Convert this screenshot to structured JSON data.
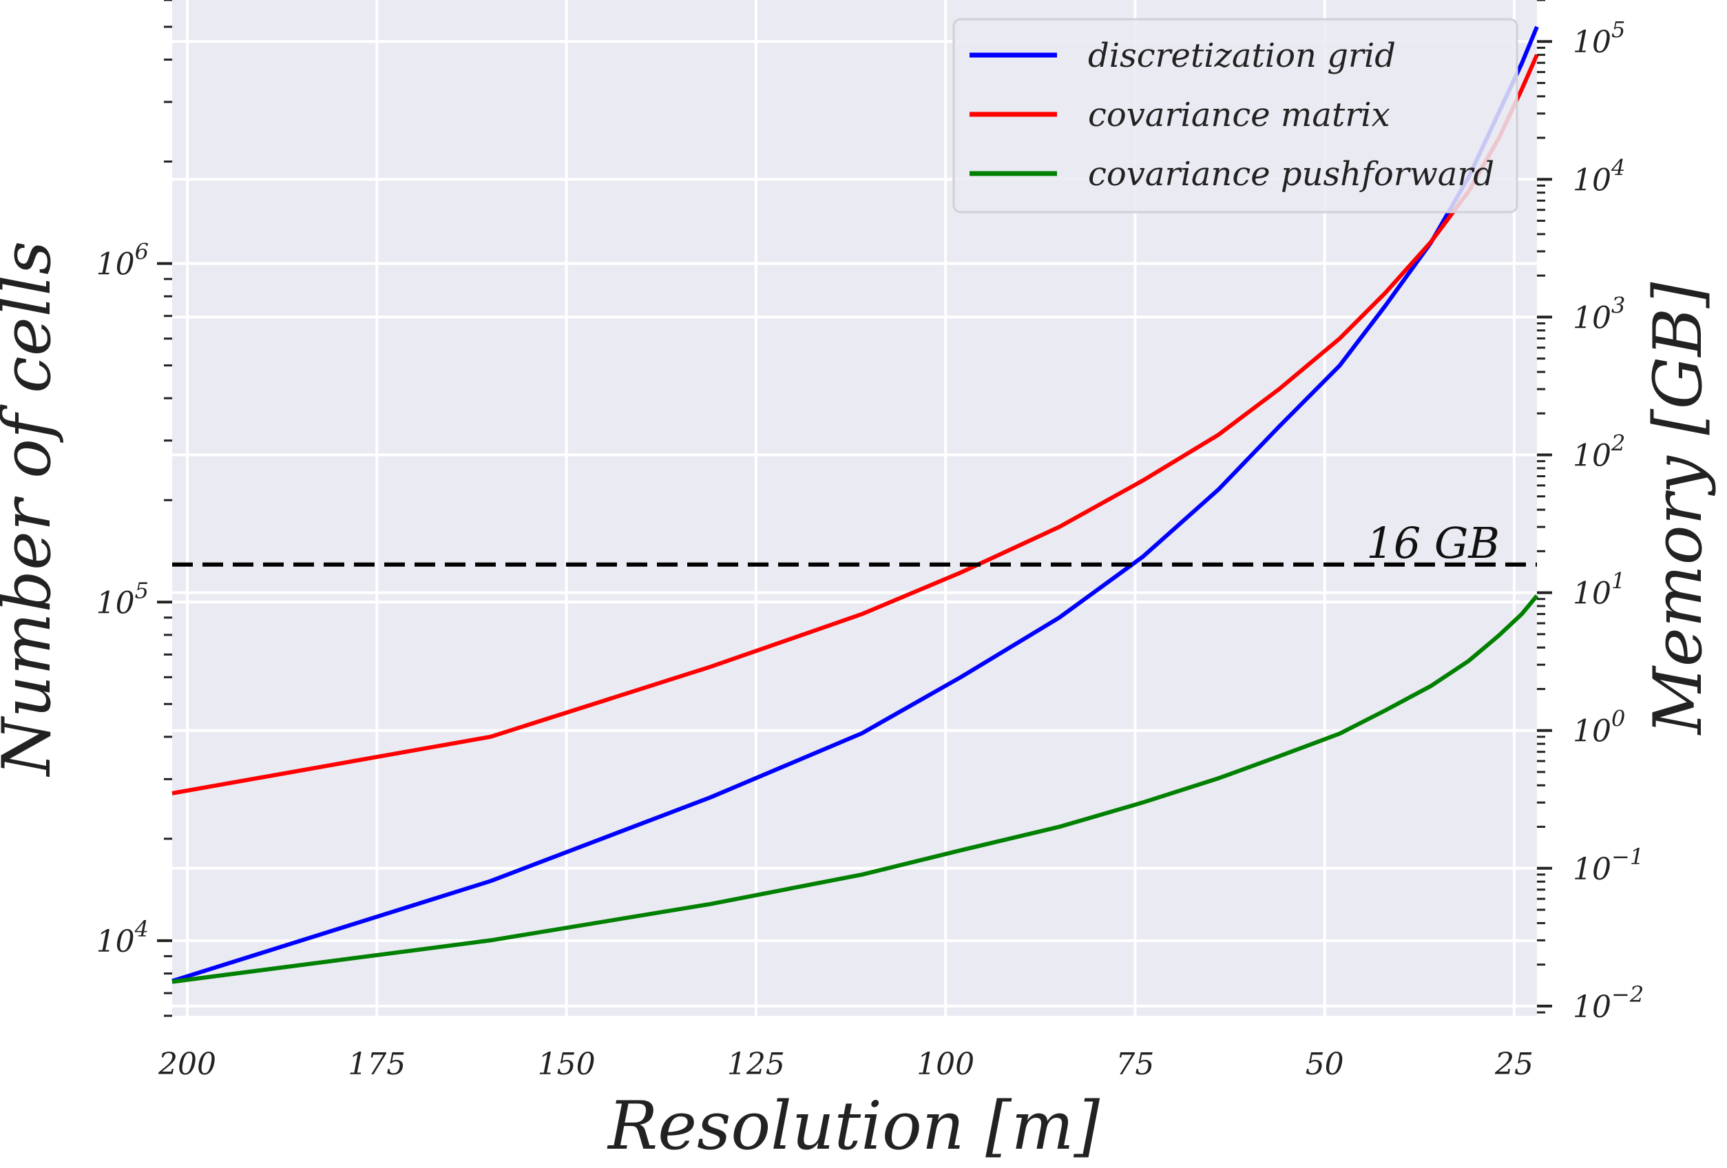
{
  "chart_data": {
    "type": "line",
    "title": "",
    "xlabel": "Resolution [m]",
    "ylabel": "Number of cells",
    "y2label": "Memory [GB]",
    "x_reversed": true,
    "xlim": [
      202,
      22
    ],
    "ylim": [
      6000,
      6000000
    ],
    "y2lim": [
      0.0085,
      200000
    ],
    "yscale": "log",
    "y2scale": "log",
    "grid": true,
    "legend_position": "top-right",
    "xticks": [
      200,
      175,
      150,
      125,
      100,
      75,
      50,
      25
    ],
    "yticks": [
      {
        "value": 10000,
        "base": "10",
        "exp": "4"
      },
      {
        "value": 100000,
        "base": "10",
        "exp": "5"
      },
      {
        "value": 1000000,
        "base": "10",
        "exp": "6"
      }
    ],
    "y2ticks": [
      {
        "value": 0.01,
        "base": "10",
        "exp": "−2"
      },
      {
        "value": 0.1,
        "base": "10",
        "exp": "−1"
      },
      {
        "value": 1,
        "base": "10",
        "exp": "0"
      },
      {
        "value": 10,
        "base": "10",
        "exp": "1"
      },
      {
        "value": 100,
        "base": "10",
        "exp": "2"
      },
      {
        "value": 1000,
        "base": "10",
        "exp": "3"
      },
      {
        "value": 10000,
        "base": "10",
        "exp": "4"
      },
      {
        "value": 100000,
        "base": "10",
        "exp": "5"
      }
    ],
    "threshold": {
      "value_gb": 16,
      "label": "16 GB",
      "color": "#000000"
    },
    "series": [
      {
        "name": "discretization grid",
        "color": "#0000ff",
        "x": [
          202,
          160,
          131,
          111,
          98,
          85,
          74,
          64,
          56,
          48,
          42,
          36,
          31,
          27,
          24,
          22
        ],
        "values": [
          7600,
          15000,
          26500,
          41000,
          60000,
          90000,
          136000,
          215000,
          330000,
          500000,
          750000,
          1150000,
          1800000,
          2800000,
          3900000,
          5000000
        ]
      },
      {
        "name": "covariance matrix",
        "color": "#ff0000",
        "x": [
          202,
          160,
          131,
          111,
          98,
          85,
          74,
          64,
          56,
          48,
          42,
          36,
          31,
          27,
          24,
          22
        ],
        "values": [
          0.35,
          0.9,
          2.9,
          7,
          14,
          30,
          65,
          140,
          300,
          700,
          1500,
          3500,
          8200,
          20000,
          45000,
          80000
        ]
      },
      {
        "name": "covariance pushforward",
        "color": "#008000",
        "x": [
          202,
          160,
          131,
          111,
          98,
          85,
          74,
          64,
          56,
          48,
          42,
          36,
          31,
          27,
          24,
          22
        ],
        "values": [
          0.015,
          0.03,
          0.055,
          0.09,
          0.135,
          0.2,
          0.3,
          0.45,
          0.65,
          0.95,
          1.4,
          2.1,
          3.2,
          4.9,
          7,
          9.5
        ]
      }
    ]
  }
}
